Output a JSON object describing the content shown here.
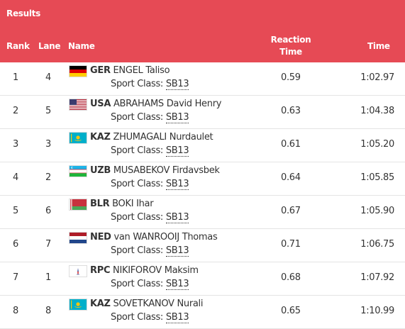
{
  "header": {
    "title": "Results",
    "columns": {
      "rank": "Rank",
      "lane": "Lane",
      "name": "Name",
      "reaction_line1": "Reaction",
      "reaction_line2": "Time",
      "time": "Time"
    }
  },
  "rows": [
    {
      "rank": "1",
      "lane": "4",
      "noc": "GER",
      "name": "ENGEL Taliso",
      "sport_class_label": "Sport Class:",
      "sport_class": "SB13",
      "reaction": "0.59",
      "time": "1:02.97",
      "flag": "germany-flag"
    },
    {
      "rank": "2",
      "lane": "5",
      "noc": "USA",
      "name": "ABRAHAMS David Henry",
      "sport_class_label": "Sport Class:",
      "sport_class": "SB13",
      "reaction": "0.63",
      "time": "1:04.38",
      "flag": "usa-flag"
    },
    {
      "rank": "3",
      "lane": "3",
      "noc": "KAZ",
      "name": "ZHUMAGALI Nurdaulet",
      "sport_class_label": "Sport Class:",
      "sport_class": "SB13",
      "reaction": "0.61",
      "time": "1:05.20",
      "flag": "kazakhstan-flag"
    },
    {
      "rank": "4",
      "lane": "2",
      "noc": "UZB",
      "name": "MUSABEKOV Firdavsbek",
      "sport_class_label": "Sport Class:",
      "sport_class": "SB13",
      "reaction": "0.64",
      "time": "1:05.85",
      "flag": "uzbekistan-flag"
    },
    {
      "rank": "5",
      "lane": "6",
      "noc": "BLR",
      "name": "BOKI Ihar",
      "sport_class_label": "Sport Class:",
      "sport_class": "SB13",
      "reaction": "0.67",
      "time": "1:05.90",
      "flag": "belarus-flag"
    },
    {
      "rank": "6",
      "lane": "7",
      "noc": "NED",
      "name": "van WANROOIJ Thomas",
      "sport_class_label": "Sport Class:",
      "sport_class": "SB13",
      "reaction": "0.71",
      "time": "1:06.75",
      "flag": "netherlands-flag"
    },
    {
      "rank": "7",
      "lane": "1",
      "noc": "RPC",
      "name": "NIKIFOROV Maksim",
      "sport_class_label": "Sport Class:",
      "sport_class": "SB13",
      "reaction": "0.68",
      "time": "1:07.92",
      "flag": "rpc-flag"
    },
    {
      "rank": "8",
      "lane": "8",
      "noc": "KAZ",
      "name": "SOVETKANOV Nurali",
      "sport_class_label": "Sport Class:",
      "sport_class": "SB13",
      "reaction": "0.65",
      "time": "1:10.99",
      "flag": "kazakhstan-flag"
    }
  ],
  "colors": {
    "header_bg": "#e64a55",
    "header_text": "#ffffff",
    "row_border": "#e4e4e4"
  }
}
